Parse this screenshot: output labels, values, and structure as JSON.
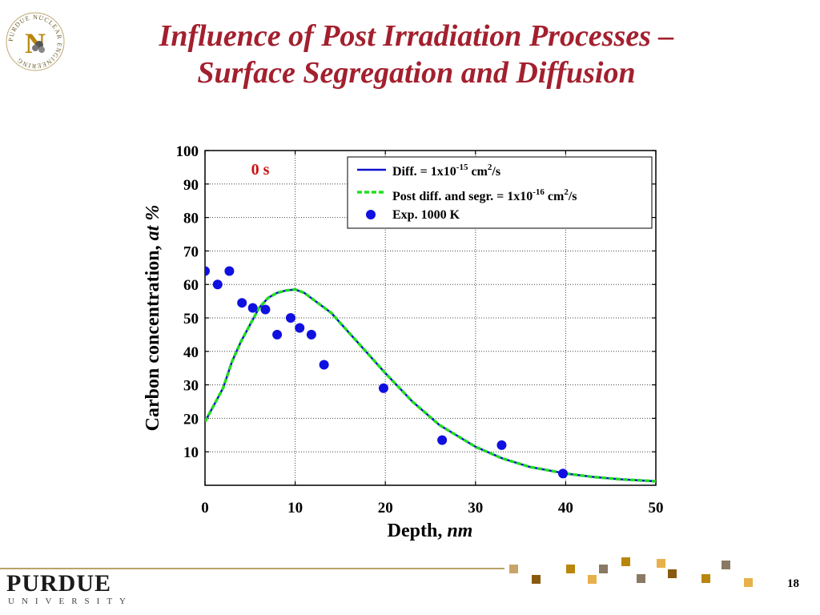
{
  "slide": {
    "title_line1": "Influence of Post Irradiation Processes –",
    "title_line2": "Surface Segregation and Diffusion",
    "page_number": "18",
    "footer_brand": "PURDUE",
    "footer_sub": "UNIVERSITY",
    "logo_text": "PURDUE NUCLEAR ENGINEERING",
    "logo_letter": "N",
    "colors": {
      "title": "#a3202e",
      "gold": "#b8860b",
      "tan": "#c8a46a"
    }
  },
  "chart_data": {
    "type": "line",
    "xlabel": "Depth, nm",
    "xlabel_main": "Depth, ",
    "xlabel_unit": "nm",
    "ylabel": "Carbon concentration, at %",
    "ylabel_main": "Carbon concentration, ",
    "ylabel_unit": "at %",
    "annotation": "0 s",
    "xlim": [
      0,
      50
    ],
    "ylim": [
      0,
      100
    ],
    "x_ticks": [
      0,
      10,
      20,
      30,
      40,
      50
    ],
    "y_ticks": [
      10,
      20,
      30,
      40,
      50,
      60,
      70,
      80,
      90,
      100
    ],
    "grid": true,
    "legend_position": "top-right",
    "series": [
      {
        "name": "Diff. = 1x10-15 cm2/s",
        "legend_parts": {
          "a": "Diff. = 1x10",
          "exp": "-15",
          "b": " cm",
          "exp2": "2",
          "c": "/s"
        },
        "kind": "line",
        "color": "#1010d0",
        "x": [
          0,
          1,
          2,
          3,
          4,
          5,
          6,
          7,
          8,
          9,
          10,
          11,
          12,
          13,
          14,
          15,
          17,
          20,
          23,
          26,
          30,
          33,
          36,
          40,
          43,
          46,
          50
        ],
        "y": [
          19,
          24,
          29,
          37,
          43,
          48,
          53,
          56,
          57.5,
          58.2,
          58.5,
          57.5,
          55.5,
          53.5,
          51.5,
          48.5,
          42.5,
          33.5,
          25,
          18,
          11.5,
          8,
          5.5,
          3.5,
          2.5,
          1.8,
          1.2
        ]
      },
      {
        "name": "Post diff. and segr. = 1x10-16 cm2/s",
        "legend_parts": {
          "a": "Post diff. and segr. = 1x10",
          "exp": "-16",
          "b": " cm",
          "exp2": "2",
          "c": "/s"
        },
        "kind": "dashed",
        "color": "#22dd22",
        "x": [
          0,
          1,
          2,
          3,
          4,
          5,
          6,
          7,
          8,
          9,
          10,
          11,
          12,
          13,
          14,
          15,
          17,
          20,
          23,
          26,
          30,
          33,
          36,
          40,
          43,
          46,
          50
        ],
        "y": [
          19,
          24,
          29,
          37,
          43,
          48,
          53,
          56,
          57.5,
          58.2,
          58.5,
          57.5,
          55.5,
          53.5,
          51.5,
          48.5,
          42.5,
          33.5,
          25,
          18,
          11.5,
          8,
          5.5,
          3.5,
          2.5,
          1.8,
          1.2
        ]
      },
      {
        "name": "Exp. 1000 K",
        "legend_parts": {
          "a": "Exp. 1000 K"
        },
        "kind": "scatter",
        "color": "#1010e0",
        "x": [
          0,
          1.4,
          2.7,
          4.1,
          5.3,
          6.7,
          8,
          9.5,
          10.5,
          11.8,
          13.2,
          19.8,
          26.3,
          32.9,
          39.7
        ],
        "y": [
          64,
          60,
          64,
          54.5,
          53,
          52.5,
          45,
          50,
          47,
          45,
          36,
          29,
          13.5,
          12,
          3.5
        ]
      }
    ]
  }
}
